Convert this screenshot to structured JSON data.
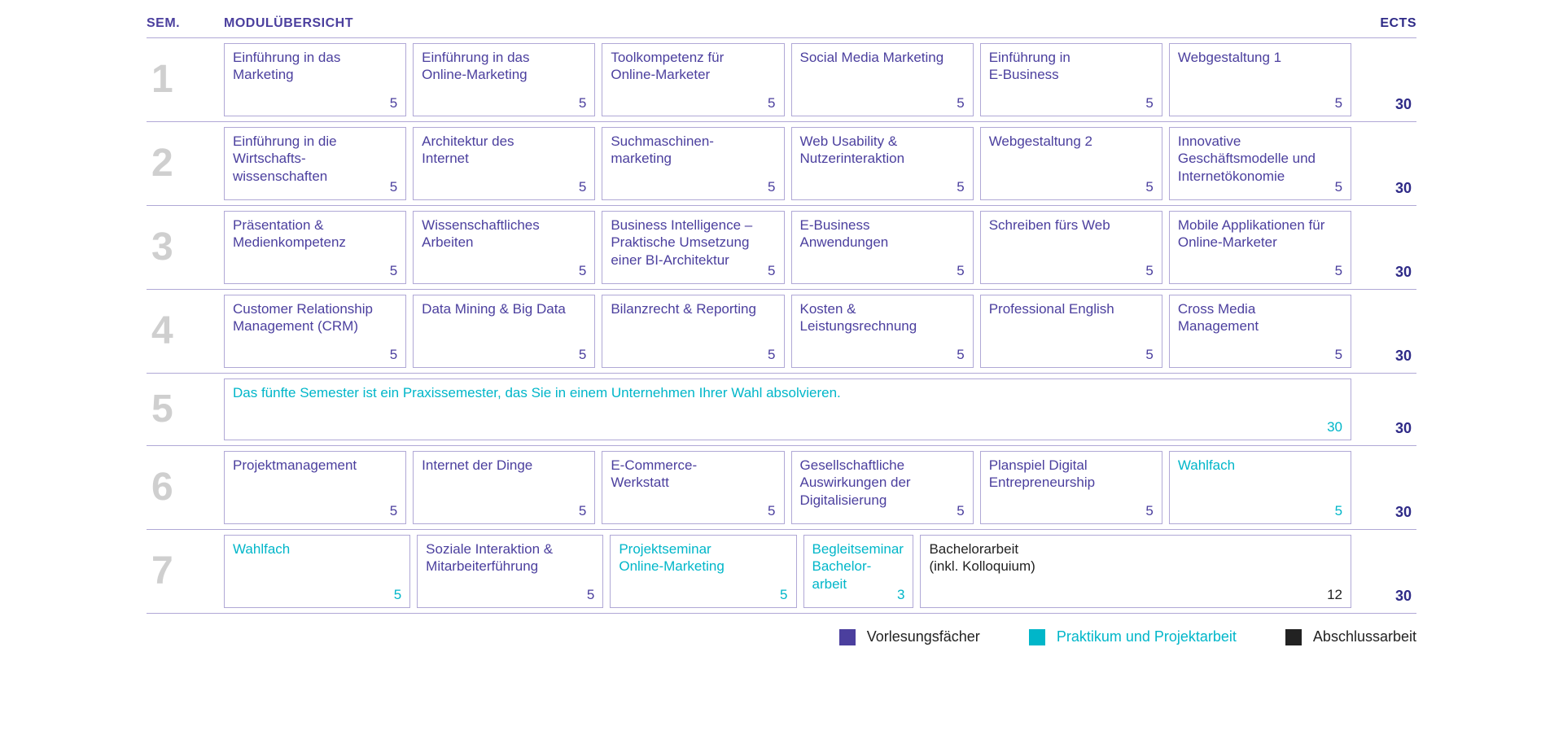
{
  "colors": {
    "primary": "#4b3f9e",
    "accent": "#00b6c9",
    "thesis": "#222222",
    "semNumber": "#cfcfcf",
    "border": "#b0a8d6",
    "ects": "#2e2a87"
  },
  "header": {
    "sem": "SEM.",
    "modules": "MODULÜBERSICHT",
    "ects": "ECTS"
  },
  "legend": [
    {
      "label": "Vorlesungsfächer",
      "colorKey": "primary",
      "textColorKey": "thesis"
    },
    {
      "label": "Praktikum und Projektarbeit",
      "colorKey": "accent",
      "textColorKey": "accent"
    },
    {
      "label": "Abschlussarbeit",
      "colorKey": "thesis",
      "textColorKey": "thesis"
    }
  ],
  "semesters": [
    {
      "num": "1",
      "ects": "30",
      "modules": [
        {
          "title": "Einführung in das\nMarketing",
          "credits": "5",
          "type": "lecture"
        },
        {
          "title": "Einführung in das\nOnline-Marketing",
          "credits": "5",
          "type": "lecture"
        },
        {
          "title": "Toolkompetenz für\nOnline-Marketer",
          "credits": "5",
          "type": "lecture"
        },
        {
          "title": "Social Media Marketing",
          "credits": "5",
          "type": "lecture"
        },
        {
          "title": "Einführung in\nE-Business",
          "credits": "5",
          "type": "lecture"
        },
        {
          "title": "Webgestaltung 1",
          "credits": "5",
          "type": "lecture"
        }
      ]
    },
    {
      "num": "2",
      "ects": "30",
      "modules": [
        {
          "title": "Einführung in die\nWirtschafts-\nwissenschaften",
          "credits": "5",
          "type": "lecture"
        },
        {
          "title": "Architektur des\nInternet",
          "credits": "5",
          "type": "lecture"
        },
        {
          "title": "Suchmaschinen-\nmarketing",
          "credits": "5",
          "type": "lecture"
        },
        {
          "title": "Web Usability  &\nNutzerinteraktion",
          "credits": "5",
          "type": "lecture"
        },
        {
          "title": "Webgestaltung 2",
          "credits": "5",
          "type": "lecture"
        },
        {
          "title": "Innovative\nGeschäftsmodelle und\nInternetökonomie",
          "credits": "5",
          "type": "lecture"
        }
      ]
    },
    {
      "num": "3",
      "ects": "30",
      "modules": [
        {
          "title": "Präsentation &\nMedienkompetenz",
          "credits": "5",
          "type": "lecture"
        },
        {
          "title": "Wissenschaftliches\nArbeiten",
          "credits": "5",
          "type": "lecture"
        },
        {
          "title": "Business Intelligence –\nPraktische Umsetzung\neiner BI-Architektur",
          "credits": "5",
          "type": "lecture"
        },
        {
          "title": "E-Business\nAnwendungen",
          "credits": "5",
          "type": "lecture"
        },
        {
          "title": "Schreiben fürs Web",
          "credits": "5",
          "type": "lecture"
        },
        {
          "title": "Mobile Applikationen für\nOnline-Marketer",
          "credits": "5",
          "type": "lecture"
        }
      ]
    },
    {
      "num": "4",
      "ects": "30",
      "modules": [
        {
          "title": "Customer Relationship\nManagement (CRM)",
          "credits": "5",
          "type": "lecture"
        },
        {
          "title": "Data Mining &  Big Data",
          "credits": "5",
          "type": "lecture"
        },
        {
          "title": "Bilanzrecht & Reporting",
          "credits": "5",
          "type": "lecture"
        },
        {
          "title": "Kosten &\nLeistungsrechnung",
          "credits": "5",
          "type": "lecture"
        },
        {
          "title": "Professional English",
          "credits": "5",
          "type": "lecture"
        },
        {
          "title": "Cross Media\nManagement",
          "credits": "5",
          "type": "lecture"
        }
      ]
    },
    {
      "num": "5",
      "ects": "30",
      "praktikumText": "Das fünfte Semester ist ein Praxissemester, das Sie in einem Unternehmen Ihrer Wahl absolvieren.",
      "praktikumCredits": "30"
    },
    {
      "num": "6",
      "ects": "30",
      "modules": [
        {
          "title": "Projektmanagement",
          "credits": "5",
          "type": "lecture"
        },
        {
          "title": "Internet der Dinge",
          "credits": "5",
          "type": "lecture"
        },
        {
          "title": "E-Commerce-\nWerkstatt",
          "credits": "5",
          "type": "lecture"
        },
        {
          "title": "Gesellschaftliche\nAuswirkungen der\nDigitalisierung",
          "credits": "5",
          "type": "lecture"
        },
        {
          "title": "Planspiel Digital\nEntrepreneurship",
          "credits": "5",
          "type": "lecture"
        },
        {
          "title": "Wahlfach",
          "credits": "5",
          "type": "praktikum"
        }
      ]
    },
    {
      "num": "7",
      "ects": "30",
      "modules": [
        {
          "title": "Wahlfach",
          "credits": "5",
          "type": "praktikum",
          "span": 1
        },
        {
          "title": "Soziale Interaktion &\nMitarbeiterführung",
          "credits": "5",
          "type": "lecture",
          "span": 1
        },
        {
          "title": "Projektseminar\nOnline-Marketing",
          "credits": "5",
          "type": "praktikum",
          "span": 1
        },
        {
          "title": "Begleitseminar\nBachelor-\narbeit",
          "credits": "3",
          "type": "praktikum",
          "span": 0.55
        },
        {
          "title": "Bachelorarbeit\n(inkl. Kolloquium)",
          "credits": "12",
          "type": "thesis",
          "span": 2.45
        }
      ]
    }
  ]
}
